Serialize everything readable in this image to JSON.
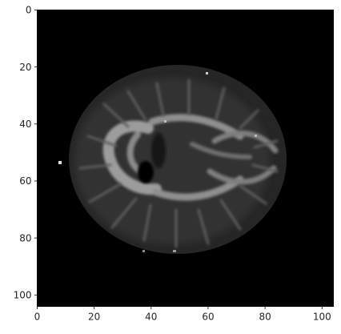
{
  "chart_data": {
    "type": "heatmap",
    "title": "",
    "xlabel": "",
    "ylabel": "",
    "colormap": "gray",
    "image_size": [
      104,
      104
    ],
    "xlim": [
      0,
      104
    ],
    "ylim": [
      104,
      0
    ],
    "x_ticks": [
      0,
      20,
      40,
      60,
      80,
      100
    ],
    "y_ticks": [
      0,
      20,
      40,
      60,
      80,
      100
    ],
    "x_tick_labels": [
      "0",
      "20",
      "40",
      "60",
      "80",
      "100"
    ],
    "y_tick_labels": [
      "0",
      "20",
      "40",
      "60",
      "80",
      "100"
    ],
    "grid": false,
    "legend": "none",
    "content": "axial brain slice, grayscale intensity, black background",
    "colors": {
      "background": "#000000",
      "frame": "#000000",
      "text": "#262626"
    }
  }
}
